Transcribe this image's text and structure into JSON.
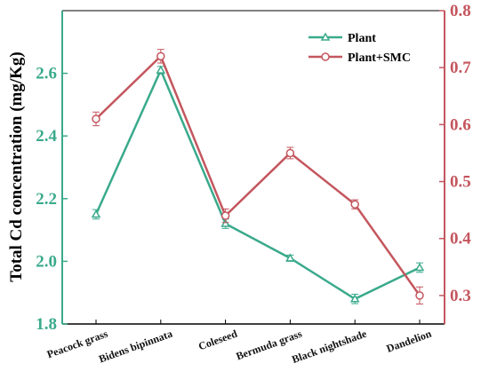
{
  "chart_data": {
    "type": "line",
    "ylabel": "Total Cd concentration (mg/Kg)",
    "categories": [
      "Peacock grass",
      "Bidens bipinnata",
      "Coleseed",
      "Bermuda grass",
      "Black nightshade",
      "Dandelion"
    ],
    "left_axis": {
      "ylim": [
        1.8,
        2.8
      ],
      "ticks": [
        "1.8",
        "2.0",
        "2.2",
        "2.4",
        "2.6"
      ],
      "color": "#3aaa8c"
    },
    "right_axis": {
      "ylim": [
        0.25,
        0.8
      ],
      "ticks": [
        "0.3",
        "0.4",
        "0.5",
        "0.6",
        "0.7",
        "0.8"
      ],
      "color": "#c4565e"
    },
    "series": [
      {
        "name": "Plant",
        "axis": "left",
        "color": "#3aaa8c",
        "marker": "triangle",
        "values": [
          2.15,
          2.61,
          2.12,
          2.01,
          1.88,
          1.98
        ],
        "errors": [
          0.015,
          0.012,
          0.015,
          0.01,
          0.015,
          0.015
        ]
      },
      {
        "name": "Plant+SMC",
        "axis": "right",
        "color": "#c4565e",
        "marker": "circle",
        "values": [
          0.61,
          0.72,
          0.44,
          0.55,
          0.46,
          0.3
        ],
        "errors": [
          0.012,
          0.012,
          0.012,
          0.01,
          0.008,
          0.015
        ]
      }
    ],
    "legend": {
      "position": "top-right"
    },
    "grid": false
  }
}
